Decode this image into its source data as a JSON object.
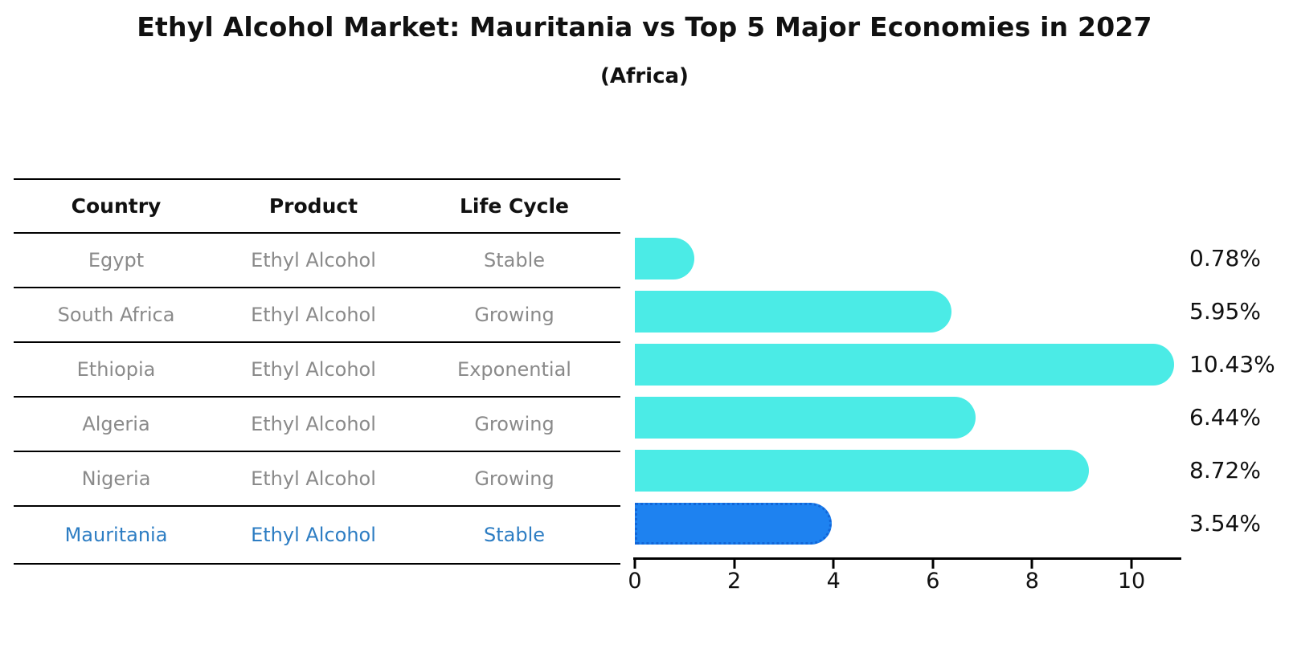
{
  "title": "Ethyl Alcohol Market: Mauritania vs Top 5 Major Economies in 2027",
  "subtitle": "(Africa)",
  "table": {
    "headers": [
      "Country",
      "Product",
      "Life Cycle"
    ],
    "rows": [
      {
        "country": "Egypt",
        "product": "Ethyl Alcohol",
        "life_cycle": "Stable",
        "highlight": false
      },
      {
        "country": "South Africa",
        "product": "Ethyl Alcohol",
        "life_cycle": "Growing",
        "highlight": false
      },
      {
        "country": "Ethiopia",
        "product": "Ethyl Alcohol",
        "life_cycle": "Exponential",
        "highlight": false
      },
      {
        "country": "Algeria",
        "product": "Ethyl Alcohol",
        "life_cycle": "Growing",
        "highlight": false
      },
      {
        "country": "Nigeria",
        "product": "Ethyl Alcohol",
        "life_cycle": "Growing",
        "highlight": false
      },
      {
        "country": "Mauritania",
        "product": "Ethyl Alcohol",
        "life_cycle": "Stable",
        "highlight": true
      }
    ]
  },
  "chart_data": {
    "type": "bar",
    "orientation": "horizontal",
    "title": "Ethyl Alcohol Market: Mauritania vs Top 5 Major Economies in 2027",
    "subtitle": "(Africa)",
    "categories": [
      "Egypt",
      "South Africa",
      "Ethiopia",
      "Algeria",
      "Nigeria",
      "Mauritania"
    ],
    "values": [
      0.78,
      5.95,
      10.43,
      6.44,
      8.72,
      3.54
    ],
    "value_labels": [
      "0.78%",
      "5.95%",
      "10.43%",
      "6.44%",
      "8.72%",
      "3.54%"
    ],
    "xlabel": "",
    "ylabel": "",
    "xlim": [
      0,
      11
    ],
    "x_ticks": [
      0,
      2,
      4,
      6,
      8,
      10
    ],
    "grid": false,
    "legend": false,
    "bar_color": "#4bebe6",
    "highlight_color": "#1e82f0",
    "highlight_index": 5
  },
  "colors": {
    "bar_cyan": "#4bebe6",
    "bar_blue": "#1e82f0",
    "blue_text": "#2d7dc3",
    "gray_text": "#8a8a8a",
    "axis": "#000000"
  }
}
